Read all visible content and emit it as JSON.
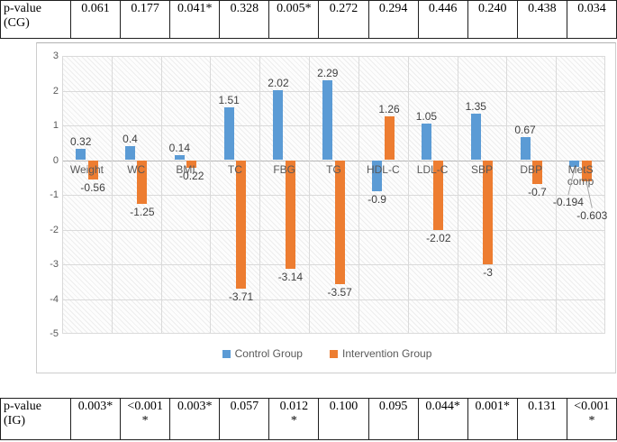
{
  "top_table": {
    "header": "p-value\n(CG)",
    "values": [
      "0.061",
      "0.177",
      "0.041*",
      "0.328",
      "0.005*",
      "0.272",
      "0.294",
      "0.446",
      "0.240",
      "0.438",
      "0.034"
    ]
  },
  "bottom_table": {
    "header": "p-value\n(IG)",
    "values": [
      "0.003*",
      "<0.001\n*",
      "0.003*",
      "0.057",
      "0.012\n*",
      "0.100",
      "0.095",
      "0.044*",
      "0.001*",
      "0.131",
      "<0.001\n*"
    ]
  },
  "chart_data": {
    "type": "bar",
    "title": "",
    "xlabel": "",
    "ylabel": "",
    "categories": [
      "Weight",
      "WC",
      "BMI",
      "TC",
      "FBG",
      "TG",
      "HDL-C",
      "LDL-C",
      "SBP",
      "DBP",
      "MetS comp"
    ],
    "series": [
      {
        "name": "Control Group",
        "color": "#5B9BD5",
        "values": [
          0.32,
          0.4,
          0.14,
          1.51,
          2.02,
          2.29,
          -0.9,
          1.05,
          1.35,
          0.67,
          -0.194
        ]
      },
      {
        "name": "Intervention Group",
        "color": "#ED7D31",
        "values": [
          -0.56,
          -1.25,
          -0.22,
          -3.71,
          -3.14,
          -3.57,
          1.26,
          -2.02,
          -3,
          -0.7,
          -0.603
        ]
      }
    ],
    "data_labels": [
      [
        "0.32",
        "0.4",
        "0.14",
        "1.51",
        "2.02",
        "2.29",
        "-0.9",
        "1.05",
        "1.35",
        "0.67",
        "-0.194"
      ],
      [
        "-0.56",
        "-1.25",
        "-0.22",
        "-3.71",
        "-3.14",
        "-3.57",
        "1.26",
        "-2.02",
        "-3",
        "-0.7",
        "-0.603"
      ]
    ],
    "label_offsets": {
      "0,10": [
        -7,
        30
      ],
      "1,10": [
        6,
        29
      ]
    },
    "ylim": [
      -5,
      3
    ],
    "yticks": [
      3,
      2,
      1,
      0,
      -1,
      -2,
      -3,
      -4,
      -5
    ],
    "grid": true,
    "pattern_fill_plot_area": true,
    "legend_position": "bottom",
    "gridline_color": "#dadada",
    "label_color": "#3f3f3f",
    "axis_text_color": "#595959"
  }
}
